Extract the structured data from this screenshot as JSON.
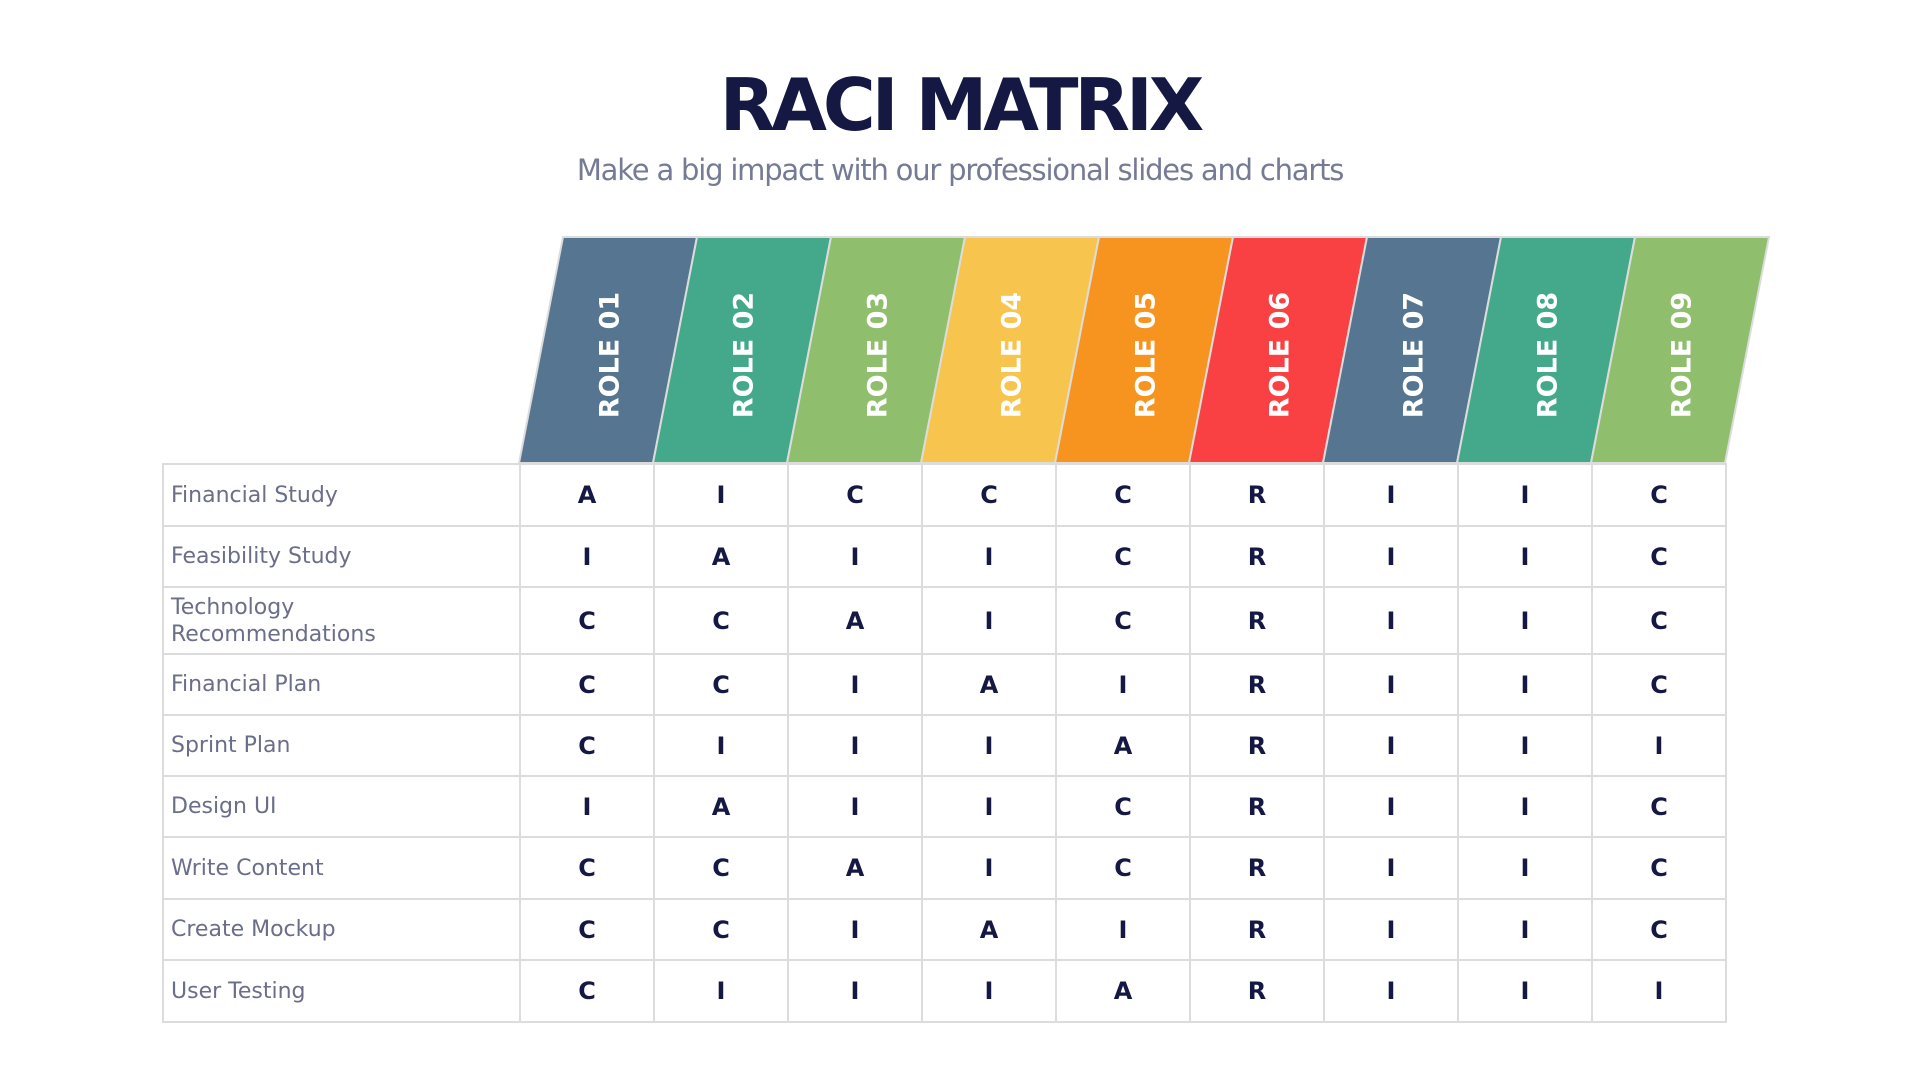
{
  "header": {
    "title": "RACI MATRIX",
    "subtitle": "Make a big impact with our professional slides and charts"
  },
  "roles": [
    {
      "label": "ROLE 01",
      "color": "#557590"
    },
    {
      "label": "ROLE 02",
      "color": "#44A98A"
    },
    {
      "label": "ROLE 03",
      "color": "#8FBE6D"
    },
    {
      "label": "ROLE 04",
      "color": "#F7C44E"
    },
    {
      "label": "ROLE 05",
      "color": "#F6941F"
    },
    {
      "label": "ROLE 06",
      "color": "#F94144"
    },
    {
      "label": "ROLE 07",
      "color": "#557590"
    },
    {
      "label": "ROLE 08",
      "color": "#44A98A"
    },
    {
      "label": "ROLE 09",
      "color": "#8FBE6D"
    }
  ],
  "tasks": [
    {
      "name": "Financial Study",
      "values": [
        "A",
        "I",
        "C",
        "C",
        "C",
        "R",
        "I",
        "I",
        "C"
      ]
    },
    {
      "name": "Feasibility Study",
      "values": [
        "I",
        "A",
        "I",
        "I",
        "C",
        "R",
        "I",
        "I",
        "C"
      ]
    },
    {
      "name": "Technology Recommendations",
      "values": [
        "C",
        "C",
        "A",
        "I",
        "C",
        "R",
        "I",
        "I",
        "C"
      ]
    },
    {
      "name": "Financial Plan",
      "values": [
        "C",
        "C",
        "I",
        "A",
        "I",
        "R",
        "I",
        "I",
        "C"
      ]
    },
    {
      "name": "Sprint Plan",
      "values": [
        "C",
        "I",
        "I",
        "I",
        "A",
        "R",
        "I",
        "I",
        "I"
      ]
    },
    {
      "name": "Design UI",
      "values": [
        "I",
        "A",
        "I",
        "I",
        "C",
        "R",
        "I",
        "I",
        "C"
      ]
    },
    {
      "name": "Write Content",
      "values": [
        "C",
        "C",
        "A",
        "I",
        "C",
        "R",
        "I",
        "I",
        "C"
      ]
    },
    {
      "name": "Create Mockup",
      "values": [
        "C",
        "C",
        "I",
        "A",
        "I",
        "R",
        "I",
        "I",
        "C"
      ]
    },
    {
      "name": "User Testing",
      "values": [
        "C",
        "I",
        "I",
        "I",
        "A",
        "R",
        "I",
        "I",
        "I"
      ]
    }
  ],
  "colors": {
    "title": "#141843",
    "subtitle": "#757A95",
    "task_text": "#6A6E89",
    "cell_text": "#141843",
    "grid": "#DCDCDC"
  }
}
